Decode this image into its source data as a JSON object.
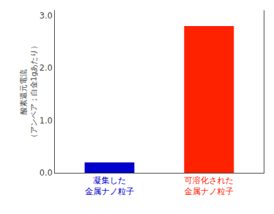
{
  "chart_data": {
    "type": "bar",
    "categories": [
      "凝集した\n金属ナノ粒子",
      "可溶化された\n金属ナノ粒子"
    ],
    "values": [
      0.2,
      2.8
    ],
    "colors": [
      "#0000cc",
      "#ff2200"
    ],
    "ylabel": "酸素還元電流\n（アンペア；白金1gあたり）",
    "ylim": [
      0,
      3.1
    ],
    "yticks": [
      {
        "value": 0.0,
        "label": "0.0"
      },
      {
        "value": 1.0,
        "label": "1.0"
      },
      {
        "value": 2.0,
        "label": "2.0"
      },
      {
        "value": 3.0,
        "label": "3.0"
      }
    ],
    "grid": false
  }
}
